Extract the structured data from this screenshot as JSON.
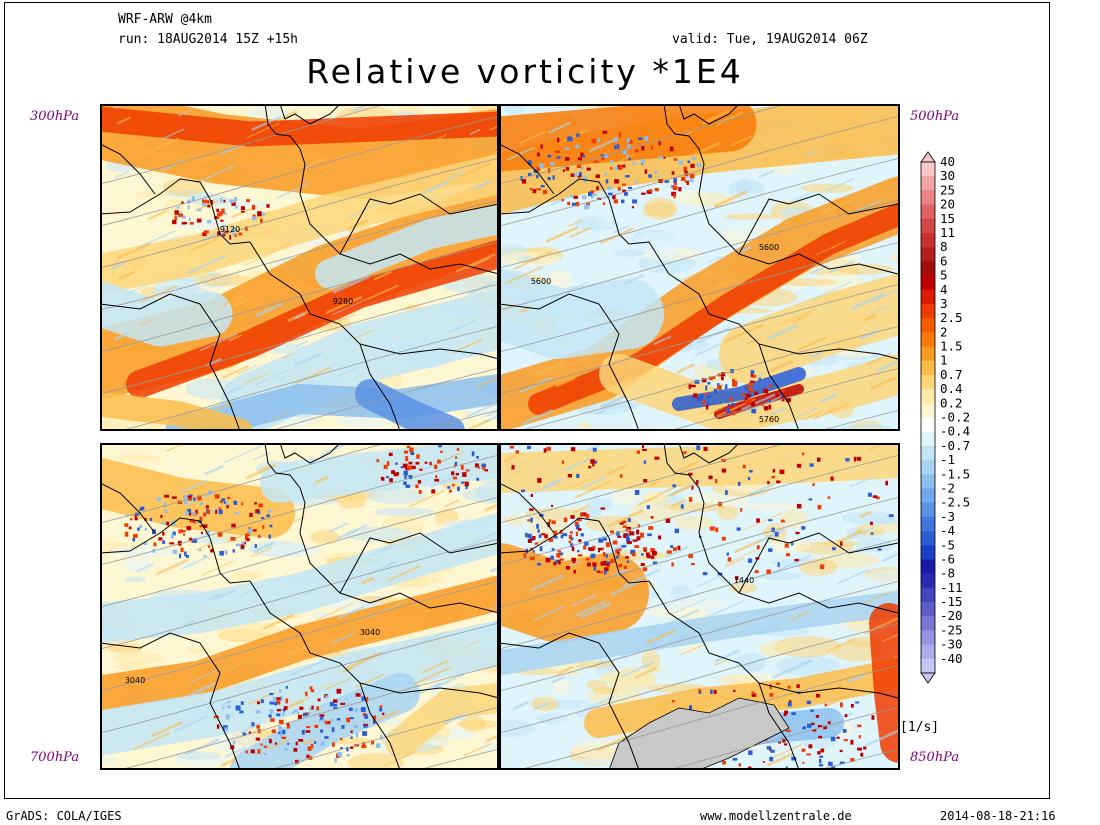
{
  "header": {
    "model": "WRF-ARW @4km",
    "run": "run: 18AUG2014 15Z +15h",
    "valid": "valid: Tue, 19AUG2014 06Z",
    "title": "Relative vorticity *1E4"
  },
  "panels": [
    {
      "level": "300hPa",
      "contour_labels": [
        "9120",
        "9280"
      ]
    },
    {
      "level": "500hPa",
      "contour_labels": [
        "5600",
        "5600",
        "5760"
      ]
    },
    {
      "level": "700hPa",
      "contour_labels": [
        "3040",
        "3040"
      ]
    },
    {
      "level": "850hPa",
      "contour_labels": [
        "1440"
      ]
    }
  ],
  "colorbar": {
    "unit": "[1/s]",
    "labels": [
      "40",
      "30",
      "25",
      "20",
      "15",
      "11",
      "8",
      "6",
      "5",
      "4",
      "3",
      "2.5",
      "2",
      "1.5",
      "1",
      "0.7",
      "0.4",
      "0.2",
      "-0.2",
      "-0.4",
      "-0.7",
      "-1",
      "-1.5",
      "-2",
      "-2.5",
      "-3",
      "-4",
      "-5",
      "-6",
      "-8",
      "-11",
      "-15",
      "-20",
      "-25",
      "-30",
      "-40"
    ],
    "colors": [
      "#f9c6c6",
      "#f1a4a4",
      "#e98282",
      "#e06262",
      "#d64848",
      "#c83232",
      "#b41e1e",
      "#a00d0d",
      "#c00000",
      "#dc1a00",
      "#ee3c00",
      "#f55a00",
      "#f87a08",
      "#f99a22",
      "#fbbc4a",
      "#fdd67a",
      "#fee9a8",
      "#fff6d2",
      "#ffffff",
      "#e0f4fb",
      "#c3e6f6",
      "#a8d4f2",
      "#8cbfee",
      "#72a8ea",
      "#5a90e4",
      "#4076de",
      "#2a5cd4",
      "#1c40c8",
      "#1a1aa8",
      "#2a2aae",
      "#4444bc",
      "#5e5ec8",
      "#7878d4",
      "#9292de",
      "#acacea",
      "#c6c6f4"
    ]
  },
  "chart_data": {
    "type": "heatmap",
    "title": "Relative vorticity *1E4",
    "unit": "[1/s]",
    "panels": [
      "300hPa",
      "500hPa",
      "700hPa",
      "850hPa"
    ],
    "levels": [
      40,
      30,
      25,
      20,
      15,
      11,
      8,
      6,
      5,
      4,
      3,
      2.5,
      2,
      1.5,
      1,
      0.7,
      0.4,
      0.2,
      -0.2,
      -0.4,
      -0.7,
      -1,
      -1.5,
      -2,
      -2.5,
      -3,
      -4,
      -5,
      -6,
      -8,
      -11,
      -15,
      -20,
      -25,
      -30,
      -40
    ],
    "contour_labels": {
      "300hPa": [
        9120,
        9280
      ],
      "500hPa": [
        5600,
        5600,
        5760
      ],
      "700hPa": [
        3040,
        3040
      ],
      "850hPa": [
        1440
      ]
    }
  },
  "footer": {
    "left": "GrADS: COLA/IGES",
    "center": "www.modellzentrale.de",
    "right": "2014-08-18-21:16"
  }
}
